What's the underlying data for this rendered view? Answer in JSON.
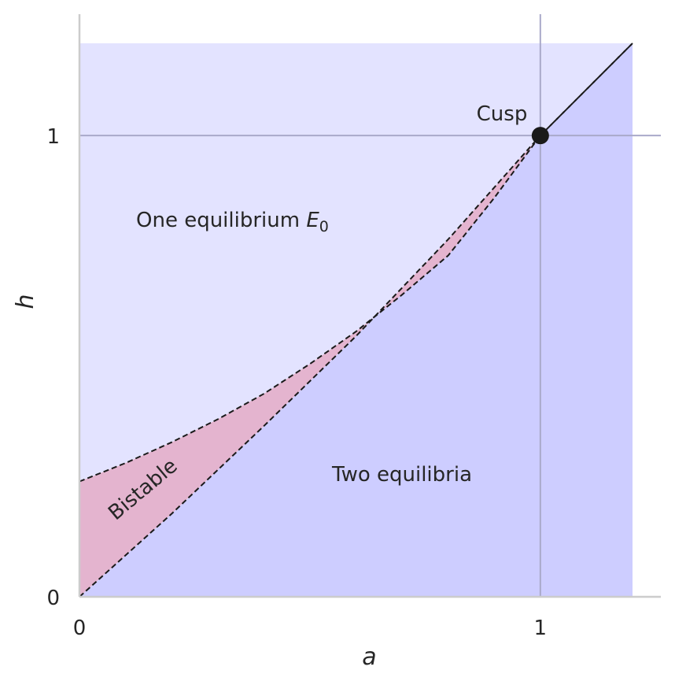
{
  "chart_data": {
    "type": "area",
    "title": "",
    "xlabel": "a",
    "ylabel": "h",
    "xlim": [
      0,
      1.2
    ],
    "ylim": [
      0,
      1.2
    ],
    "x_ticks": [
      0,
      1
    ],
    "x_tick_labels": [
      "0",
      "1"
    ],
    "y_ticks": [
      0,
      1
    ],
    "y_tick_labels": [
      "0",
      "1"
    ],
    "grid": false,
    "reference_lines": {
      "x": 1,
      "y": 1
    },
    "boundaries": [
      {
        "role": "upper-boundary",
        "x": [
          0,
          0.1,
          0.2,
          0.3,
          0.4,
          0.5,
          0.6,
          0.7,
          0.8,
          0.9,
          1.0,
          1.1,
          1.2
        ],
        "y": [
          0.25,
          0.29,
          0.335,
          0.385,
          0.44,
          0.505,
          0.575,
          0.655,
          0.74,
          0.865,
          1.0,
          1.1,
          1.2
        ]
      },
      {
        "role": "lower-boundary",
        "x": [
          0,
          0.2,
          0.4,
          0.6,
          0.8,
          1.0,
          1.2
        ],
        "y": [
          0,
          0.18,
          0.37,
          0.565,
          0.775,
          1.0,
          1.2
        ]
      }
    ],
    "regions": [
      {
        "label": "One equilibrium",
        "label_math": "E",
        "label_sub": "0",
        "color": "#e3e3ff"
      },
      {
        "label": "Bistable",
        "color": "#e4b4cf"
      },
      {
        "label": "Two equilibria",
        "color": "#cdcdff"
      }
    ],
    "points": [
      {
        "label": "Cusp",
        "x": 1,
        "y": 1,
        "color": "#1a1a1a"
      }
    ]
  }
}
